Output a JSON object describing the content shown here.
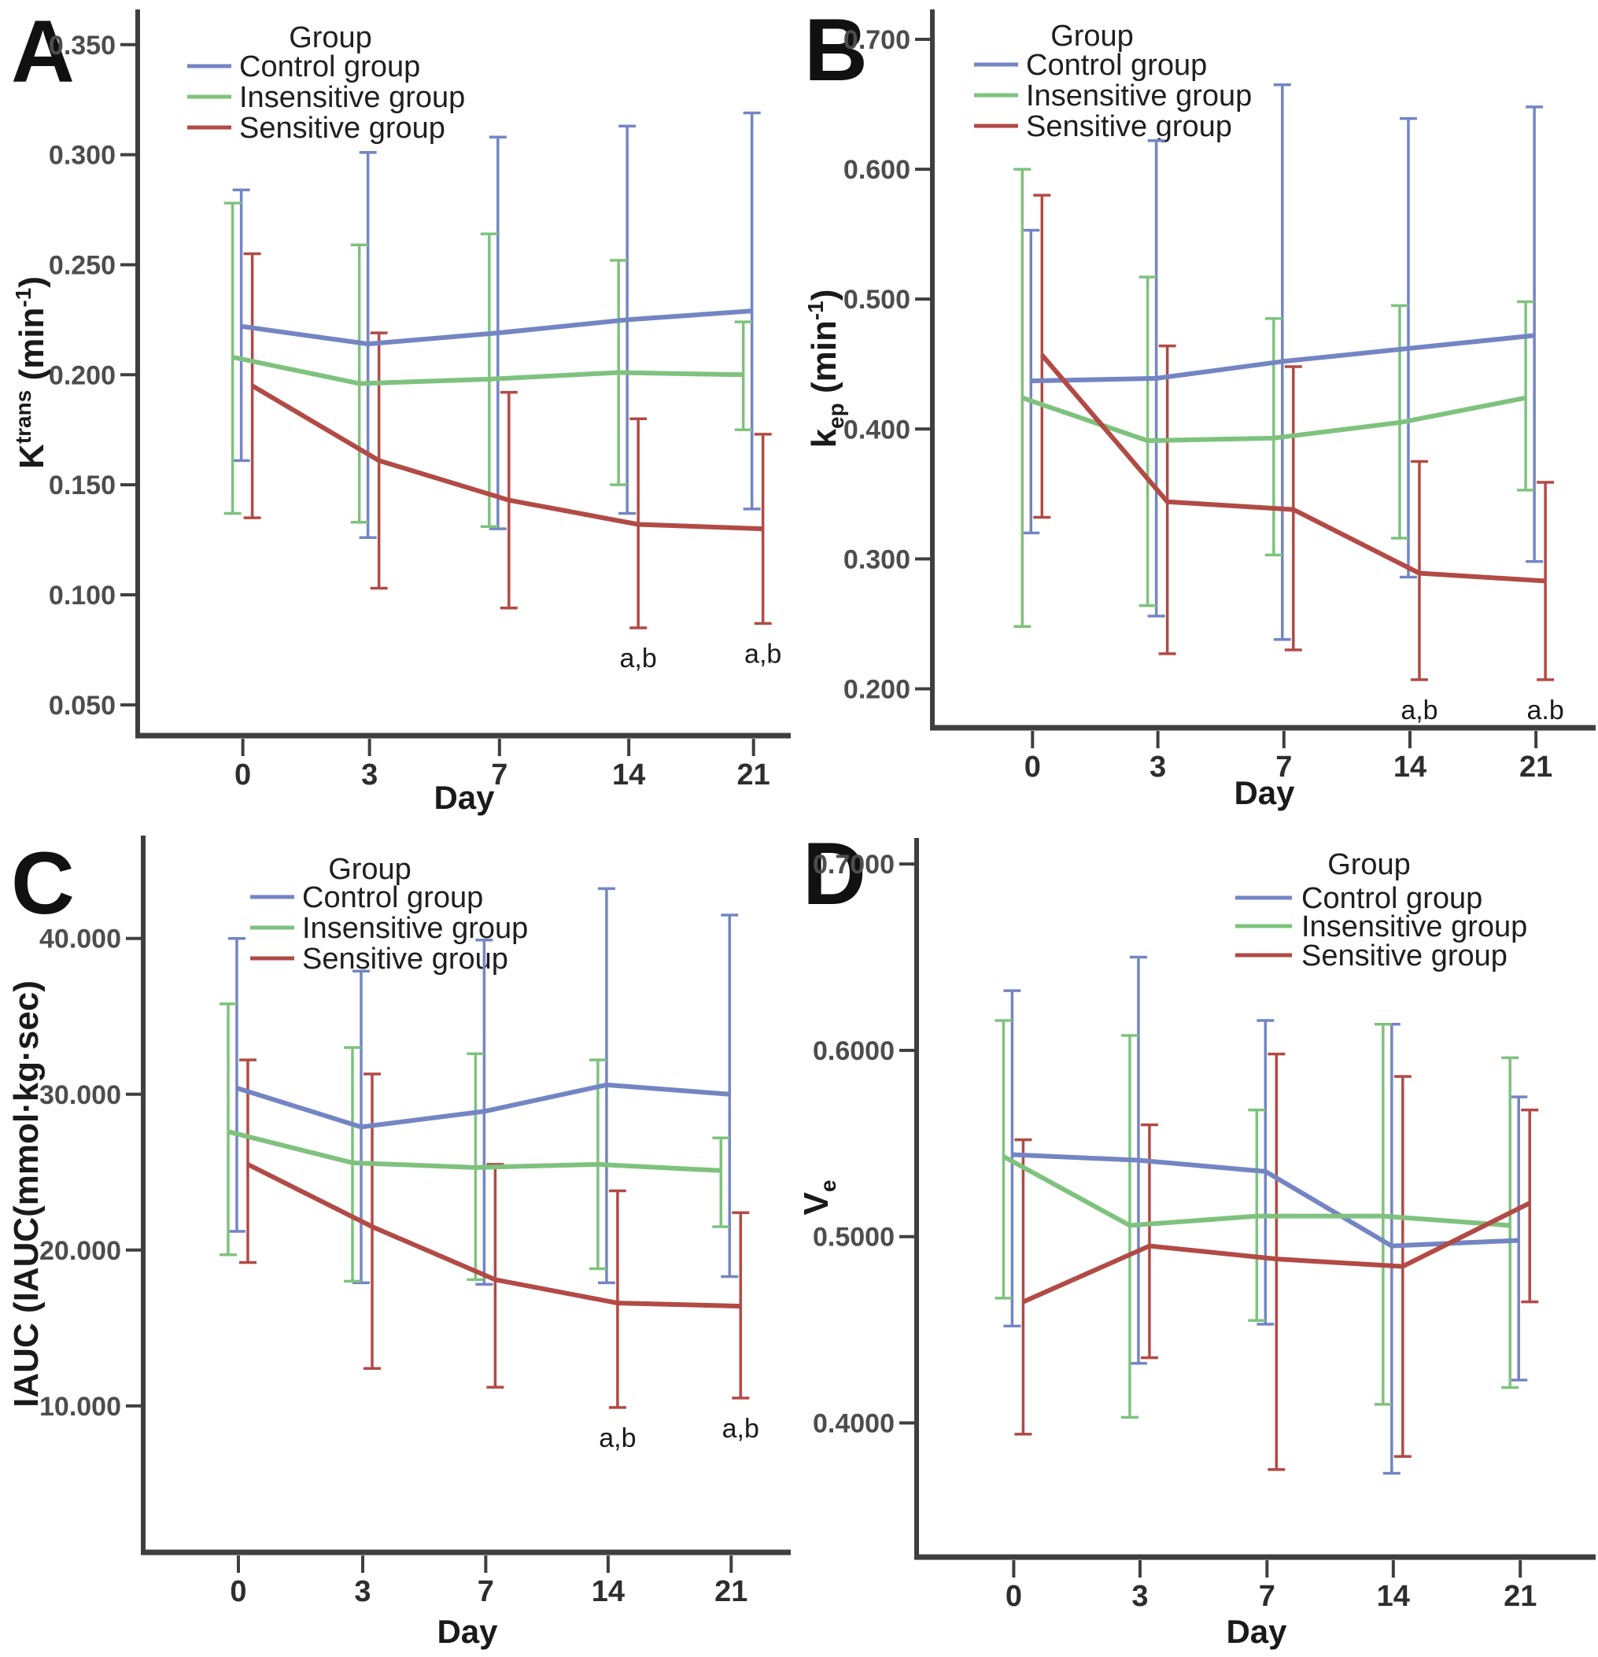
{
  "figure_title": "",
  "chart_data": [
    {
      "type": "line",
      "panel_label": "A",
      "xlabel": "Day",
      "ylabel_text": "Ktrans (min-1)",
      "ylabel_parts": [
        {
          "t": "K"
        },
        {
          "t": "trans",
          "sup": 1
        },
        {
          "t": " (min"
        },
        {
          "t": "-1",
          "sup": 1
        },
        {
          "t": ")"
        }
      ],
      "categories": [
        0,
        3,
        7,
        14,
        21
      ],
      "x_tick_labels": [
        "0",
        "3",
        "7",
        "14",
        "21"
      ],
      "yticks": [
        0.05,
        0.1,
        0.15,
        0.2,
        0.25,
        0.3,
        0.35
      ],
      "ytick_labels": [
        "0.050",
        "0.100",
        "0.150",
        "0.200",
        "0.250",
        "0.300",
        "0.350"
      ],
      "ylim": [
        0.036,
        0.366
      ],
      "grid": false,
      "legend_title": "Group",
      "legend_position": "top-center",
      "series": [
        {
          "name": "Control group",
          "color": "#7385c3",
          "mean": [
            0.222,
            0.214,
            0.219,
            0.225,
            0.229
          ],
          "upper": [
            0.284,
            0.301,
            0.308,
            0.313,
            0.319
          ],
          "lower": [
            0.161,
            0.126,
            0.13,
            0.137,
            0.139
          ]
        },
        {
          "name": "Insensitive group",
          "color": "#7ec27e",
          "mean": [
            0.208,
            0.196,
            0.198,
            0.201,
            0.2
          ],
          "upper": [
            0.278,
            0.259,
            0.264,
            0.252,
            0.224
          ],
          "lower": [
            0.137,
            0.133,
            0.131,
            0.15,
            0.175
          ]
        },
        {
          "name": "Sensitive group",
          "color": "#b24a45",
          "mean": [
            0.195,
            0.161,
            0.143,
            0.132,
            0.13
          ],
          "upper": [
            0.255,
            0.219,
            0.192,
            0.18,
            0.173
          ],
          "lower": [
            0.135,
            0.103,
            0.094,
            0.085,
            0.087
          ]
        }
      ],
      "annotations": [
        {
          "day_index": 3,
          "text": "a,b"
        },
        {
          "day_index": 4,
          "text": "a,b"
        }
      ]
    },
    {
      "type": "line",
      "panel_label": "B",
      "xlabel": "Day",
      "ylabel_text": "kep (min-1)",
      "ylabel_parts": [
        {
          "t": "k"
        },
        {
          "t": "ep",
          "sub": 1
        },
        {
          "t": " (min"
        },
        {
          "t": "-1",
          "sup": 1
        },
        {
          "t": ")"
        }
      ],
      "categories": [
        0,
        3,
        7,
        14,
        21
      ],
      "x_tick_labels": [
        "0",
        "3",
        "7",
        "14",
        "21"
      ],
      "yticks": [
        0.2,
        0.3,
        0.4,
        0.5,
        0.6,
        0.7
      ],
      "ytick_labels": [
        "0.200",
        "0.300",
        "0.400",
        "0.500",
        "0.600",
        "0.700"
      ],
      "ylim": [
        0.17,
        0.723
      ],
      "grid": false,
      "legend_title": "Group",
      "legend_position": "top-center",
      "series": [
        {
          "name": "Control group",
          "color": "#7385c3",
          "mean": [
            0.437,
            0.439,
            0.452,
            0.462,
            0.472
          ],
          "upper": [
            0.553,
            0.622,
            0.665,
            0.639,
            0.648
          ],
          "lower": [
            0.32,
            0.256,
            0.238,
            0.286,
            0.298
          ]
        },
        {
          "name": "Insensitive group",
          "color": "#7ec27e",
          "mean": [
            0.424,
            0.391,
            0.393,
            0.405,
            0.424
          ],
          "upper": [
            0.6,
            0.517,
            0.485,
            0.495,
            0.498
          ],
          "lower": [
            0.248,
            0.264,
            0.303,
            0.316,
            0.353
          ]
        },
        {
          "name": "Sensitive group",
          "color": "#b24a45",
          "mean": [
            0.457,
            0.344,
            0.338,
            0.289,
            0.283
          ],
          "upper": [
            0.58,
            0.464,
            0.448,
            0.375,
            0.359
          ],
          "lower": [
            0.332,
            0.227,
            0.23,
            0.207,
            0.207
          ]
        }
      ],
      "annotations": [
        {
          "day_index": 3,
          "text": "a,b"
        },
        {
          "day_index": 4,
          "text": "a.b"
        }
      ]
    },
    {
      "type": "line",
      "panel_label": "C",
      "xlabel": "Day",
      "ylabel_text": "IAUC (IAUC(mmol·kg·sec)",
      "ylabel_parts": [
        {
          "t": "IAUC (IAUC(mmol·kg·sec)"
        }
      ],
      "categories": [
        0,
        3,
        7,
        14,
        21
      ],
      "x_tick_labels": [
        "0",
        "3",
        "7",
        "14",
        "21"
      ],
      "yticks": [
        10.0,
        20.0,
        30.0,
        40.0
      ],
      "ytick_labels": [
        "10.000",
        "20.000",
        "30.000",
        "40.000"
      ],
      "ylim": [
        0.6,
        46.6
      ],
      "grid": false,
      "legend_title": "Group",
      "legend_position": "top-center",
      "series": [
        {
          "name": "Control group",
          "color": "#7385c3",
          "mean": [
            30.4,
            27.9,
            28.9,
            30.6,
            30.0
          ],
          "upper": [
            40.0,
            37.9,
            39.9,
            43.2,
            41.5
          ],
          "lower": [
            21.2,
            17.9,
            17.8,
            17.9,
            18.3
          ]
        },
        {
          "name": "Insensitive group",
          "color": "#7ec27e",
          "mean": [
            27.6,
            25.6,
            25.3,
            25.5,
            25.1
          ],
          "upper": [
            35.8,
            33.0,
            32.6,
            32.2,
            27.2
          ],
          "lower": [
            19.7,
            18.0,
            18.1,
            18.8,
            21.5
          ]
        },
        {
          "name": "Sensitive group",
          "color": "#b24a45",
          "mean": [
            25.5,
            21.5,
            18.1,
            16.6,
            16.4
          ],
          "upper": [
            32.2,
            31.3,
            25.5,
            23.8,
            22.4
          ],
          "lower": [
            19.2,
            12.4,
            11.2,
            9.9,
            10.5
          ]
        }
      ],
      "annotations": [
        {
          "day_index": 3,
          "text": "a,b"
        },
        {
          "day_index": 4,
          "text": "a,b"
        }
      ]
    },
    {
      "type": "line",
      "panel_label": "D",
      "xlabel": "Day",
      "ylabel_text": "Ve",
      "ylabel_parts": [
        {
          "t": "V"
        },
        {
          "t": "e",
          "sub": 1
        }
      ],
      "categories": [
        0,
        3,
        7,
        14,
        21
      ],
      "x_tick_labels": [
        "0",
        "3",
        "7",
        "14",
        "21"
      ],
      "yticks": [
        0.4,
        0.5,
        0.6,
        0.7
      ],
      "ytick_labels": [
        "0.4000",
        "0.5000",
        "0.6000",
        "0.7000"
      ],
      "ylim": [
        0.328,
        0.714
      ],
      "grid": false,
      "legend_title": "Group",
      "legend_position": "top-right",
      "series": [
        {
          "name": "Control group",
          "color": "#7385c3",
          "mean": [
            0.544,
            0.541,
            0.535,
            0.495,
            0.498
          ],
          "upper": [
            0.632,
            0.65,
            0.616,
            0.614,
            0.575
          ],
          "lower": [
            0.452,
            0.432,
            0.453,
            0.373,
            0.423
          ]
        },
        {
          "name": "Insensitive group",
          "color": "#7ec27e",
          "mean": [
            0.543,
            0.506,
            0.511,
            0.511,
            0.506
          ],
          "upper": [
            0.616,
            0.608,
            0.568,
            0.614,
            0.596
          ],
          "lower": [
            0.467,
            0.403,
            0.455,
            0.41,
            0.419
          ]
        },
        {
          "name": "Sensitive group",
          "color": "#b24a45",
          "mean": [
            0.465,
            0.495,
            0.488,
            0.484,
            0.518
          ],
          "upper": [
            0.552,
            0.56,
            0.598,
            0.586,
            0.568
          ],
          "lower": [
            0.394,
            0.435,
            0.375,
            0.382,
            0.465
          ]
        }
      ],
      "annotations": []
    }
  ]
}
